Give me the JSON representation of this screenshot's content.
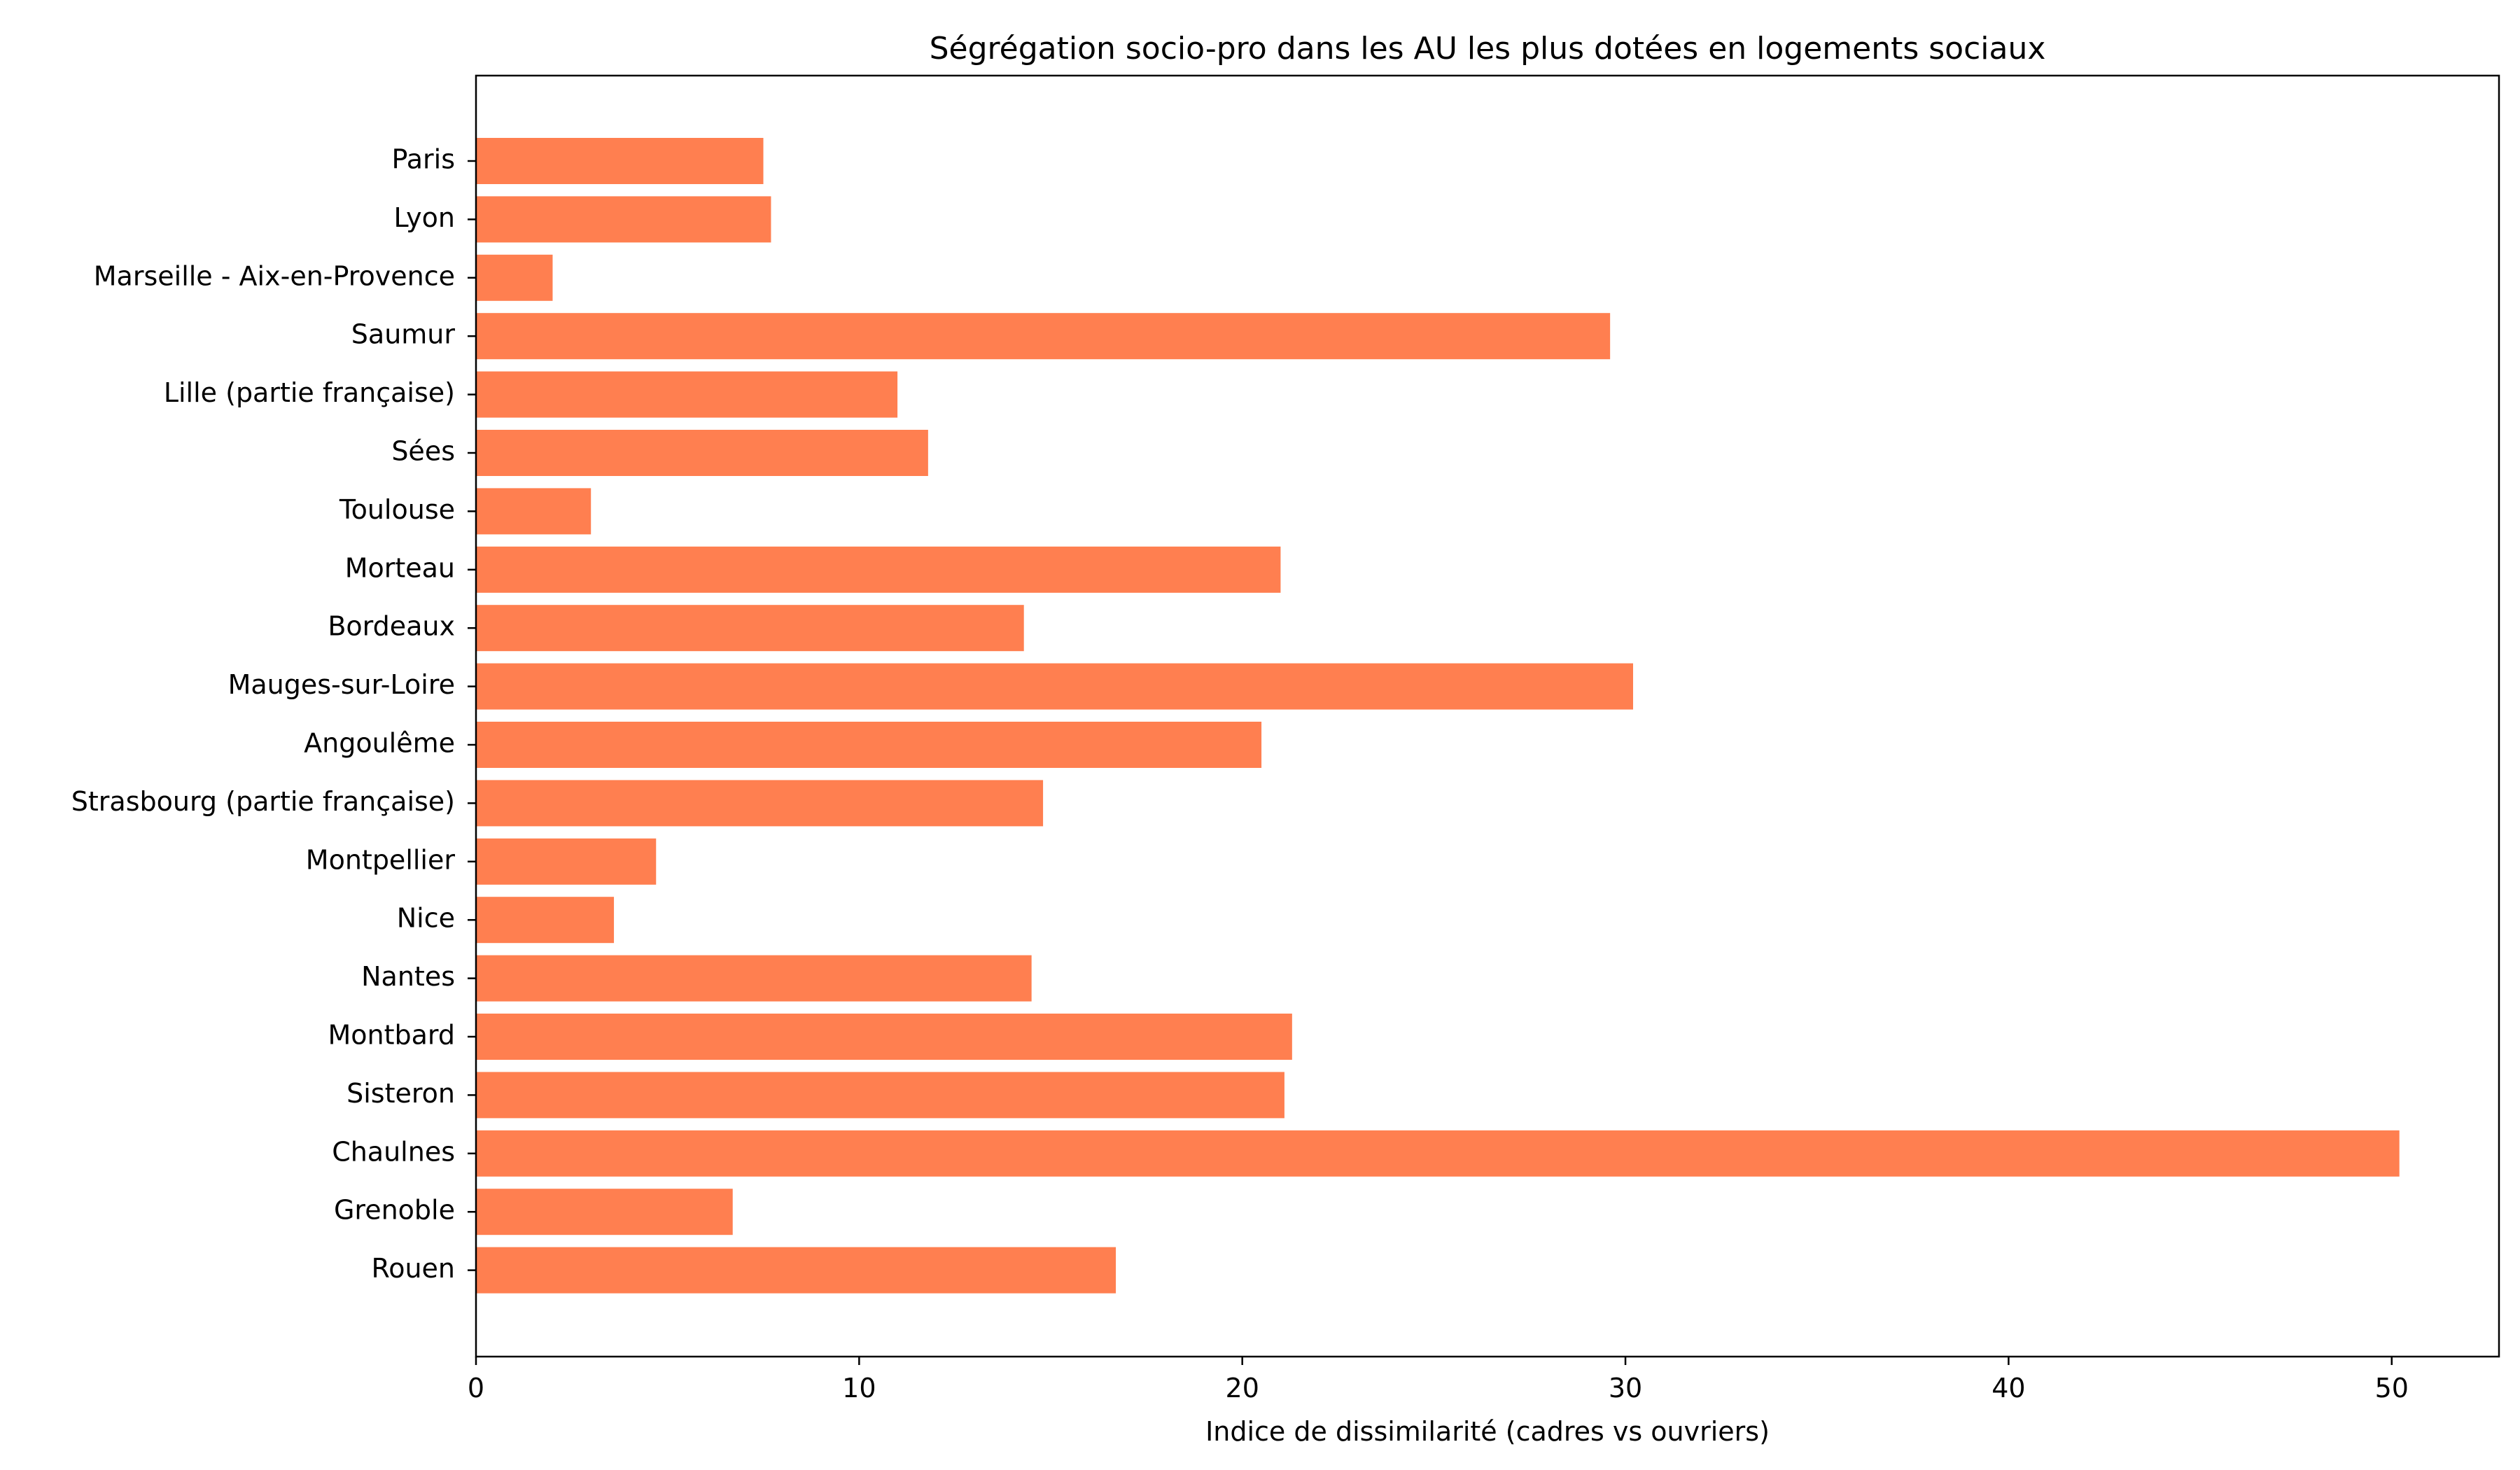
{
  "chart_data": {
    "type": "bar",
    "orientation": "horizontal",
    "title": "Ségrégation socio-pro dans les AU les plus dotées en logements sociaux",
    "xlabel": "Indice de dissimilarité (cadres vs ouvriers)",
    "ylabel": "",
    "xlim": [
      0,
      52.8
    ],
    "xticks": [
      "0",
      "10",
      "20",
      "30",
      "40",
      "50"
    ],
    "grid": false,
    "bar_color": "#ff7f50",
    "categories": [
      "Paris",
      "Lyon",
      "Marseille - Aix-en-Provence",
      "Saumur",
      "Lille (partie française)",
      "Sées",
      "Toulouse",
      "Morteau",
      "Bordeaux",
      "Mauges-sur-Loire",
      "Angoulême",
      "Strasbourg (partie française)",
      "Montpellier",
      "Nice",
      "Nantes",
      "Montbard",
      "Sisteron",
      "Chaulnes",
      "Grenoble",
      "Rouen"
    ],
    "values": [
      7.5,
      7.7,
      2.0,
      29.6,
      11.0,
      11.8,
      3.0,
      21.0,
      14.3,
      30.2,
      20.5,
      14.8,
      4.7,
      3.6,
      14.5,
      21.3,
      21.1,
      50.2,
      6.7,
      16.7
    ]
  }
}
